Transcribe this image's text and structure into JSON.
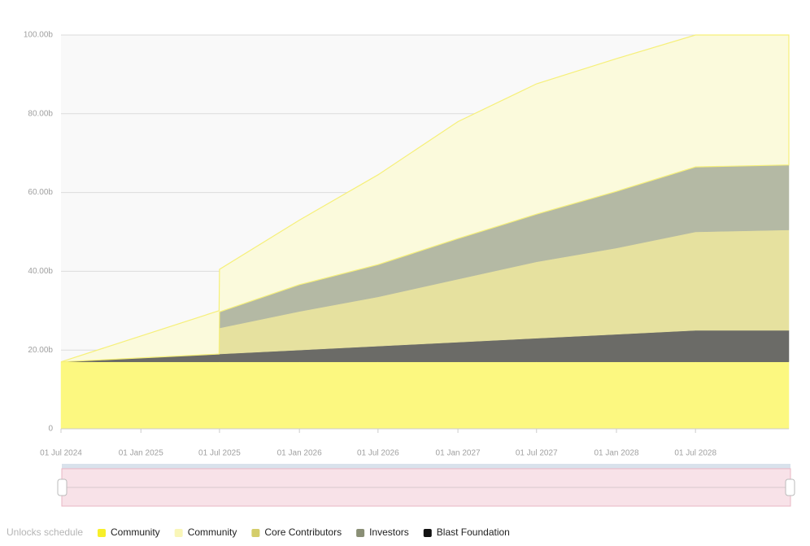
{
  "chart_data": {
    "type": "stacked-area",
    "legend_title": "Unlocks schedule",
    "x": [
      "2024-07-01",
      "2025-06-30",
      "2025-07-01",
      "2026-01-01",
      "2026-07-01",
      "2027-01-01",
      "2027-07-01",
      "2028-01-01",
      "2028-07-01",
      "2029-02-01"
    ],
    "series": [
      {
        "name": "Community",
        "color": "#fcf880",
        "values": [
          17,
          17,
          17,
          17,
          17,
          17,
          17,
          17,
          17,
          17
        ]
      },
      {
        "name": "Community",
        "color": "#fbfadc",
        "values": [
          0,
          11,
          10.8,
          16.4,
          22.8,
          29.7,
          33.1,
          33.7,
          33.5,
          33
        ]
      },
      {
        "name": "Core Contributors",
        "color": "#e6e19f",
        "values": [
          0,
          0,
          6.6,
          9.8,
          12.5,
          16,
          19.4,
          21.9,
          25,
          25.5
        ]
      },
      {
        "name": "Investors",
        "color": "#b4b9a4",
        "values": [
          0,
          0,
          4.1,
          6.8,
          8.2,
          10.3,
          12.1,
          14.4,
          16.5,
          16.5
        ]
      },
      {
        "name": "Blast Foundation",
        "color": "#6b6b67",
        "values": [
          0,
          2,
          2,
          3,
          4,
          5,
          6,
          7,
          8,
          8
        ]
      }
    ],
    "xlim": [
      "2024-07-01",
      "2029-02-01"
    ],
    "xticks": [
      {
        "value": "2024-07-01",
        "label": "01 Jul 2024"
      },
      {
        "value": "2025-01-01",
        "label": "01 Jan 2025"
      },
      {
        "value": "2025-07-01",
        "label": "01 Jul 2025"
      },
      {
        "value": "2026-01-01",
        "label": "01 Jan 2026"
      },
      {
        "value": "2026-07-01",
        "label": "01 Jul 2026"
      },
      {
        "value": "2027-01-01",
        "label": "01 Jan 2027"
      },
      {
        "value": "2027-07-01",
        "label": "01 Jul 2027"
      },
      {
        "value": "2028-01-01",
        "label": "01 Jan 2028"
      },
      {
        "value": "2028-07-01",
        "label": "01 Jul 2028"
      }
    ],
    "ylim": [
      0,
      100
    ],
    "yticks": [
      0,
      {
        "value": 20,
        "label": "20.00b"
      },
      {
        "value": 40,
        "label": "40.00b"
      },
      {
        "value": 60,
        "label": "60.00b"
      },
      {
        "value": 80,
        "label": "80.00b"
      },
      {
        "value": 100,
        "label": "100.00b"
      }
    ],
    "grid": true
  }
}
